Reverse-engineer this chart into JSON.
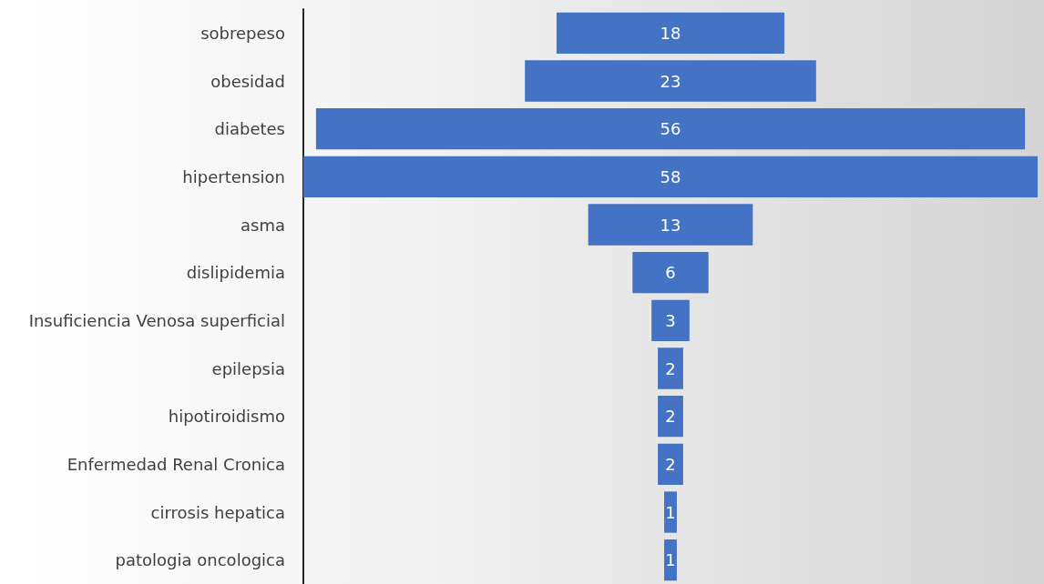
{
  "chart_data": {
    "type": "other",
    "categories": [
      "sobrepeso",
      "obesidad",
      "diabetes",
      "hipertension",
      "asma",
      "dislipidemia",
      "Insuficiencia Venosa superficial",
      "epilepsia",
      "hipotiroidismo",
      "Enfermedad Renal Cronica",
      "cirrosis hepatica",
      "patologia oncologica"
    ],
    "values": [
      18,
      23,
      56,
      58,
      13,
      6,
      3,
      2,
      2,
      2,
      1,
      1
    ],
    "color": "#4472c4",
    "data_labels": true
  }
}
